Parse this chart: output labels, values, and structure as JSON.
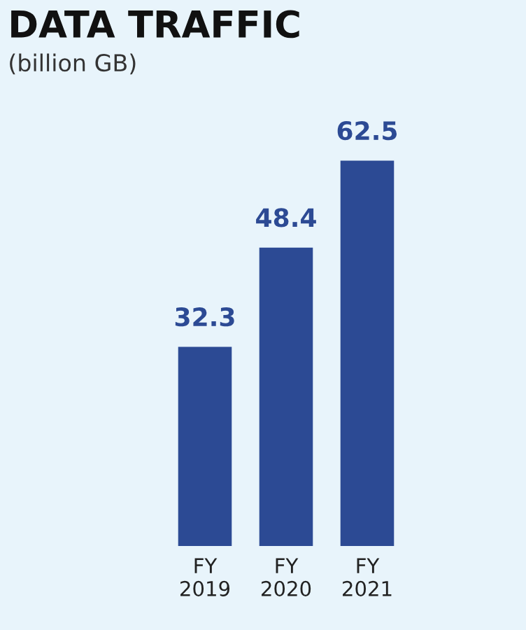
{
  "chart_data": {
    "type": "bar",
    "title": "DATA TRAFFIC",
    "subtitle": "(billion GB)",
    "categories": [
      "FY\n2019",
      "FY\n2020",
      "FY\n2021"
    ],
    "values": [
      32.3,
      48.4,
      62.5
    ],
    "color": "#2c4a94",
    "data_labels": true,
    "grid": false,
    "legend": false
  }
}
